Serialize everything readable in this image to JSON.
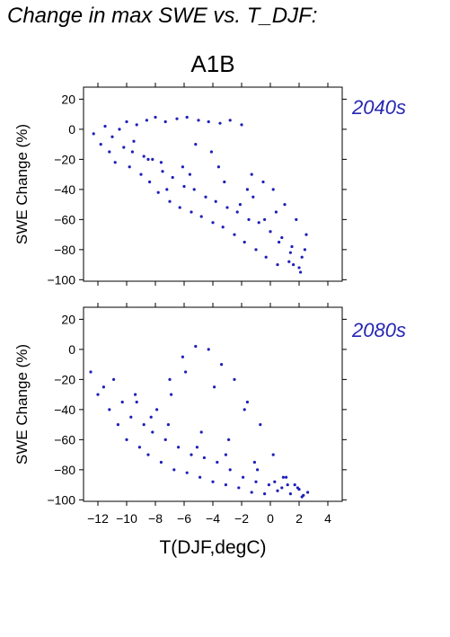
{
  "header": {
    "title": "Change in max SWE vs. T_DJF:",
    "scenario": "A1B"
  },
  "colors": {
    "points": "#1f1fb8",
    "period_label": "#2626b3"
  },
  "chart_data": [
    {
      "type": "scatter",
      "period_label": "2040s",
      "ylabel": "SWE Change (%)",
      "xlabel": "",
      "xlim": [
        -13,
        5
      ],
      "ylim": [
        -101,
        28
      ],
      "xticks": [
        -12,
        -10,
        -8,
        -6,
        -4,
        -2,
        0,
        2,
        4
      ],
      "yticks": [
        20,
        0,
        -20,
        -40,
        -60,
        -80,
        -100
      ],
      "ytick_labels": [
        "20",
        "0",
        "−20",
        "−40",
        "−60",
        "−80",
        "−100"
      ],
      "series": [
        {
          "x": [
            -12.3,
            -11.8,
            -11.5,
            -11.2,
            -11,
            -10.8,
            -10.5,
            -10.2,
            -10,
            -9.8,
            -9.5,
            -9.3,
            -9,
            -8.8,
            -8.6,
            -8.4,
            -8.2,
            -8,
            -7.8,
            -7.5,
            -7.3,
            -7,
            -6.8,
            -6.5,
            -6.3,
            -6,
            -5.8,
            -5.5,
            -5.3,
            -5,
            -4.8,
            -4.5,
            -4.3,
            -4,
            -3.8,
            -3.5,
            -3.3,
            -3,
            -2.8,
            -2.5,
            -2.3,
            -2,
            -1.8,
            -1.5,
            -1.3,
            -1,
            -0.8,
            -0.5,
            -0.3,
            0,
            0.2,
            0.5,
            0.8,
            1,
            1.3,
            1.5,
            1.8,
            2,
            2.2,
            2.5,
            -8.5,
            -7.2,
            -6.1,
            -5.2,
            -4.1,
            -3.2,
            -2.1,
            -1.2,
            -0.4,
            0.6,
            1.4,
            2.1,
            -9.6,
            -7.6,
            -5.6,
            -3.6,
            -1.6,
            0.4,
            1.6,
            2.4
          ],
          "y": [
            -3,
            -10,
            2,
            -15,
            -5,
            -22,
            0,
            -12,
            5,
            -25,
            -8,
            3,
            -30,
            -18,
            6,
            -35,
            -20,
            8,
            -42,
            -28,
            5,
            -48,
            -32,
            7,
            -52,
            -38,
            8,
            -55,
            -40,
            6,
            -58,
            -45,
            5,
            -62,
            -48,
            4,
            -65,
            -52,
            6,
            -70,
            -55,
            3,
            -75,
            -60,
            -30,
            -80,
            -62,
            -35,
            -85,
            -68,
            -40,
            -90,
            -72,
            -50,
            -88,
            -78,
            -60,
            -92,
            -85,
            -70,
            -20,
            -40,
            -25,
            -10,
            -15,
            -35,
            -50,
            -45,
            -60,
            -75,
            -82,
            -95,
            -15,
            -22,
            -30,
            -25,
            -40,
            -55,
            -90,
            -80
          ]
        }
      ]
    },
    {
      "type": "scatter",
      "period_label": "2080s",
      "ylabel": "SWE Change (%)",
      "xlabel": "T(DJF,degC)",
      "xlim": [
        -13,
        5
      ],
      "ylim": [
        -101,
        28
      ],
      "xticks": [
        -12,
        -10,
        -8,
        -6,
        -4,
        -2,
        0,
        2,
        4
      ],
      "xtick_labels": [
        "−12",
        "−10",
        "−8",
        "−6",
        "−4",
        "−2",
        "0",
        "2",
        "4"
      ],
      "yticks": [
        20,
        0,
        -20,
        -40,
        -60,
        -80,
        -100
      ],
      "ytick_labels": [
        "20",
        "0",
        "−20",
        "−40",
        "−60",
        "−80",
        "−100"
      ],
      "series": [
        {
          "x": [
            -12.5,
            -12,
            -11.6,
            -11.2,
            -10.9,
            -10.6,
            -10.3,
            -10,
            -9.7,
            -9.4,
            -9.1,
            -8.8,
            -8.5,
            -8.2,
            -7.9,
            -7.6,
            -7.3,
            -7,
            -6.7,
            -6.4,
            -6.1,
            -5.8,
            -5.5,
            -5.2,
            -4.9,
            -4.6,
            -4.3,
            -4,
            -3.7,
            -3.4,
            -3.1,
            -2.8,
            -2.5,
            -2.2,
            -1.9,
            -1.6,
            -1.3,
            -1,
            -0.7,
            -0.4,
            -0.1,
            0.2,
            0.5,
            0.8,
            1.1,
            1.4,
            1.7,
            2,
            2.3,
            2.6,
            -8.3,
            -6.9,
            -5.9,
            -4.8,
            -3.9,
            -2.9,
            -1.8,
            -0.9,
            0.3,
            1.2,
            2.2,
            -9.3,
            -7.1,
            -5.1,
            -3.1,
            -1.1,
            0.9,
            1.9
          ],
          "y": [
            -15,
            -30,
            -25,
            -40,
            -20,
            -50,
            -35,
            -60,
            -45,
            -30,
            -65,
            -50,
            -70,
            -55,
            -40,
            -75,
            -60,
            -20,
            -80,
            -65,
            -5,
            -82,
            -70,
            2,
            -85,
            -72,
            0,
            -88,
            -75,
            -10,
            -90,
            -80,
            -20,
            -92,
            -85,
            -35,
            -95,
            -88,
            -50,
            -96,
            -90,
            -70,
            -94,
            -92,
            -85,
            -96,
            -90,
            -93,
            -97,
            -95,
            -45,
            -30,
            -15,
            -55,
            -25,
            -60,
            -40,
            -80,
            -88,
            -90,
            -98,
            -35,
            -50,
            -65,
            -70,
            -75,
            -85,
            -92
          ]
        }
      ]
    }
  ]
}
